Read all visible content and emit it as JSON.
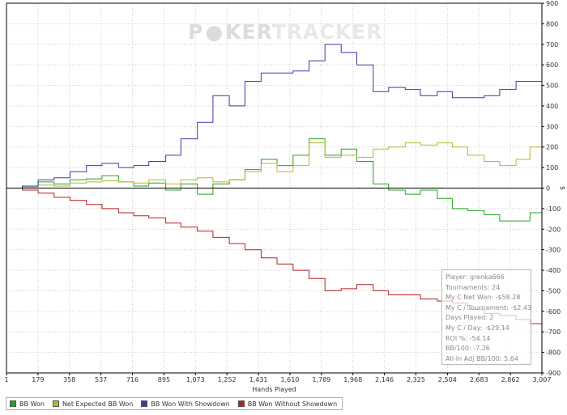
{
  "watermark": {
    "brand_left": "P",
    "brand_mid": "KER",
    "brand_right": "TRACKER"
  },
  "chart_data": {
    "type": "line",
    "title": "",
    "xlabel": "Hands Played",
    "ylabel": "$",
    "xlim": [
      1,
      3007
    ],
    "ylim": [
      -900,
      900
    ],
    "x_ticks": [
      "1",
      "179",
      "358",
      "537",
      "716",
      "895",
      "1,073",
      "1,252",
      "1,431",
      "1,610",
      "1,789",
      "1,968",
      "2,146",
      "2,325",
      "2,504",
      "2,683",
      "2,862",
      "3,007"
    ],
    "y_ticks": [
      "900",
      "800",
      "700",
      "600",
      "500",
      "400",
      "300",
      "200",
      "100",
      "0",
      "-100",
      "-200",
      "-300",
      "-400",
      "-500",
      "-600",
      "-700",
      "-800",
      "-900"
    ],
    "series": [
      {
        "name": "BB Won",
        "color": "#22a322",
        "x": [
          1,
          90,
          179,
          268,
          358,
          450,
          537,
          630,
          716,
          800,
          895,
          980,
          1073,
          1160,
          1252,
          1340,
          1431,
          1520,
          1610,
          1700,
          1789,
          1880,
          1968,
          2060,
          2146,
          2240,
          2325,
          2420,
          2504,
          2590,
          2683,
          2770,
          2862,
          2940,
          3007
        ],
        "y": [
          0,
          10,
          30,
          20,
          40,
          45,
          60,
          30,
          10,
          25,
          -10,
          20,
          -30,
          20,
          40,
          90,
          140,
          110,
          160,
          240,
          160,
          190,
          130,
          20,
          -10,
          -30,
          -10,
          -50,
          -100,
          -110,
          -130,
          -160,
          -160,
          -120,
          -180
        ]
      },
      {
        "name": "Net Expected BB Won",
        "color": "#b7b72a",
        "x": [
          1,
          90,
          179,
          268,
          358,
          450,
          537,
          630,
          716,
          800,
          895,
          980,
          1073,
          1160,
          1252,
          1340,
          1431,
          1520,
          1610,
          1700,
          1789,
          1880,
          1968,
          2060,
          2146,
          2240,
          2325,
          2420,
          2504,
          2590,
          2683,
          2770,
          2862,
          2940,
          3007
        ],
        "y": [
          0,
          5,
          15,
          10,
          25,
          30,
          35,
          30,
          25,
          40,
          20,
          40,
          50,
          30,
          40,
          80,
          120,
          80,
          110,
          220,
          150,
          160,
          150,
          190,
          200,
          220,
          210,
          220,
          200,
          160,
          130,
          110,
          140,
          200,
          180
        ]
      },
      {
        "name": "BB Won With Showdown",
        "color": "#3a3ab0",
        "x": [
          1,
          90,
          179,
          268,
          358,
          450,
          537,
          630,
          716,
          800,
          895,
          980,
          1073,
          1160,
          1252,
          1340,
          1431,
          1520,
          1610,
          1700,
          1789,
          1880,
          1968,
          2060,
          2146,
          2240,
          2325,
          2420,
          2504,
          2590,
          2683,
          2770,
          2862,
          2940,
          3007
        ],
        "y": [
          0,
          10,
          40,
          50,
          80,
          110,
          120,
          100,
          110,
          130,
          160,
          240,
          320,
          450,
          400,
          520,
          560,
          560,
          570,
          620,
          700,
          660,
          600,
          470,
          490,
          480,
          450,
          470,
          440,
          440,
          450,
          480,
          520,
          520,
          530
        ]
      },
      {
        "name": "BB Won Without Showdown",
        "color": "#b32020",
        "x": [
          1,
          90,
          179,
          268,
          358,
          450,
          537,
          630,
          716,
          800,
          895,
          980,
          1073,
          1160,
          1252,
          1340,
          1431,
          1520,
          1610,
          1700,
          1789,
          1880,
          1968,
          2060,
          2146,
          2240,
          2325,
          2420,
          2504,
          2590,
          2683,
          2770,
          2862,
          2940,
          3007
        ],
        "y": [
          0,
          -10,
          -25,
          -45,
          -60,
          -80,
          -100,
          -120,
          -135,
          -145,
          -170,
          -190,
          -210,
          -240,
          -270,
          -300,
          -340,
          -370,
          -400,
          -440,
          -500,
          -490,
          -470,
          -500,
          -520,
          -520,
          -540,
          -550,
          -560,
          -590,
          -610,
          -620,
          -640,
          -660,
          -690
        ]
      }
    ]
  },
  "stats_box": {
    "player": "Player: grenka666",
    "tournaments": "Tournaments: 24",
    "net_won": "My C Net Won: -$58.28",
    "per_tournament": "My C / Tournament: -$2.43",
    "days_played": "Days Played: 2",
    "per_day": "My C / Day: -$29.14",
    "roi": "ROI %: -54.14",
    "bb100": "BB/100: -7.26",
    "allin_bb100": "All-In Adj BB/100: 5.64"
  },
  "legend": {
    "items": [
      {
        "label": "BB Won",
        "color": "#22a322"
      },
      {
        "label": "Net Expected BB Won",
        "color": "#b7b72a"
      },
      {
        "label": "BB Won With Showdown",
        "color": "#3a3ab0"
      },
      {
        "label": "BB Won Without Showdown",
        "color": "#b32020"
      }
    ]
  }
}
